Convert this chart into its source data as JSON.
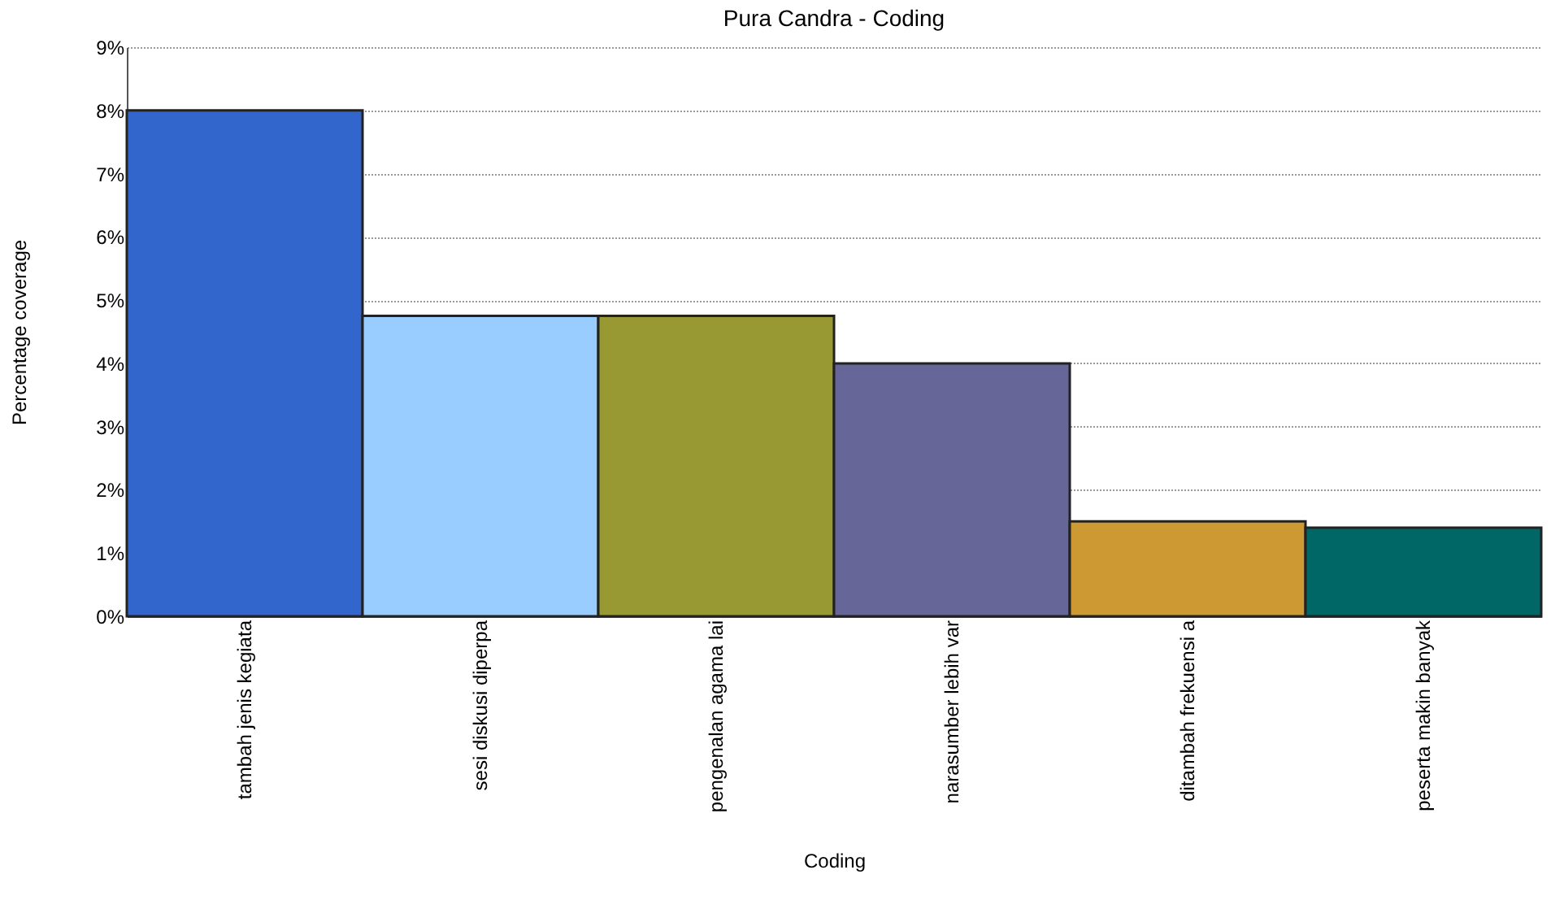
{
  "chart_data": {
    "type": "bar",
    "title": "Pura Candra - Coding",
    "xlabel": "Coding",
    "ylabel": "Percentage coverage",
    "categories": [
      "tambah jenis kegiata",
      "sesi diskusi diperpa",
      "pengenalan agama lai",
      "narasumber lebih var",
      "ditambah frekuensi a",
      "peserta makin banyak"
    ],
    "values": [
      8.0,
      4.75,
      4.75,
      4.0,
      1.5,
      1.4
    ],
    "colors": [
      "#3366cc",
      "#99ccff",
      "#999933",
      "#666699",
      "#cc9933",
      "#006666"
    ],
    "ylim": [
      0,
      9
    ],
    "yticks": [
      {
        "value": 0,
        "label": "0%"
      },
      {
        "value": 1,
        "label": "1%"
      },
      {
        "value": 2,
        "label": "2%"
      },
      {
        "value": 3,
        "label": "3%"
      },
      {
        "value": 4,
        "label": "4%"
      },
      {
        "value": 5,
        "label": "5%"
      },
      {
        "value": 6,
        "label": "6%"
      },
      {
        "value": 7,
        "label": "7%"
      },
      {
        "value": 8,
        "label": "8%"
      },
      {
        "value": 9,
        "label": "9%"
      }
    ],
    "grid": "y",
    "legend": false
  }
}
